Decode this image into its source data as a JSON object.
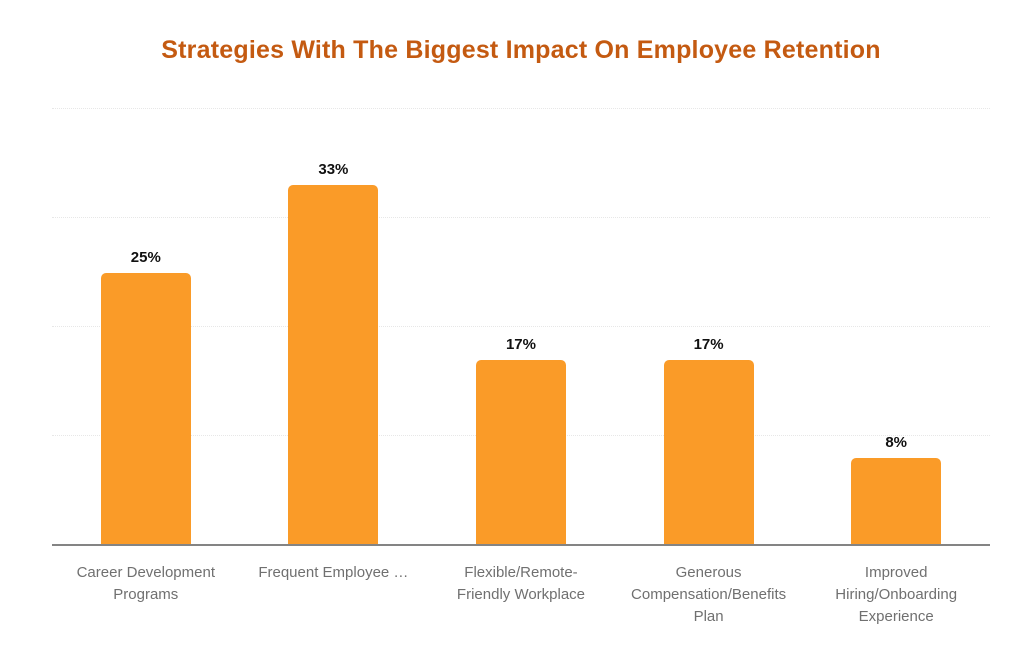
{
  "chart_data": {
    "type": "bar",
    "title": "Strategies With The Biggest Impact On Employee Retention",
    "categories": [
      "Career Development Programs",
      "Frequent Employee …",
      "Flexible/Remote-Friendly Workplace",
      "Generous Compensation/Benefits Plan",
      "Improved Hiring/Onboarding Experience"
    ],
    "categories_lines": [
      [
        "Career Development",
        "Programs"
      ],
      [
        "Frequent Employee …"
      ],
      [
        "Flexible/Remote-",
        "Friendly Workplace"
      ],
      [
        "Generous",
        "Compensation/Benefits",
        "Plan"
      ],
      [
        "Improved",
        "Hiring/Onboarding",
        "Experience"
      ]
    ],
    "values": [
      25,
      33,
      17,
      17,
      8
    ],
    "value_labels": [
      "25%",
      "33%",
      "17%",
      "17%",
      "8%"
    ],
    "xlabel": "",
    "ylabel": "",
    "ylim": [
      0,
      40
    ],
    "gridlines": [
      10,
      20,
      30,
      40
    ],
    "grid_style": "dotted horizontal, no y tick labels",
    "legend": "none",
    "colors": {
      "bar": "#FA9B28",
      "title": "#C45A11",
      "value_label": "#111111",
      "category_label": "#707070",
      "axis_line": "#848484",
      "gridline": "#e7e7e7",
      "background": "#ffffff"
    }
  }
}
